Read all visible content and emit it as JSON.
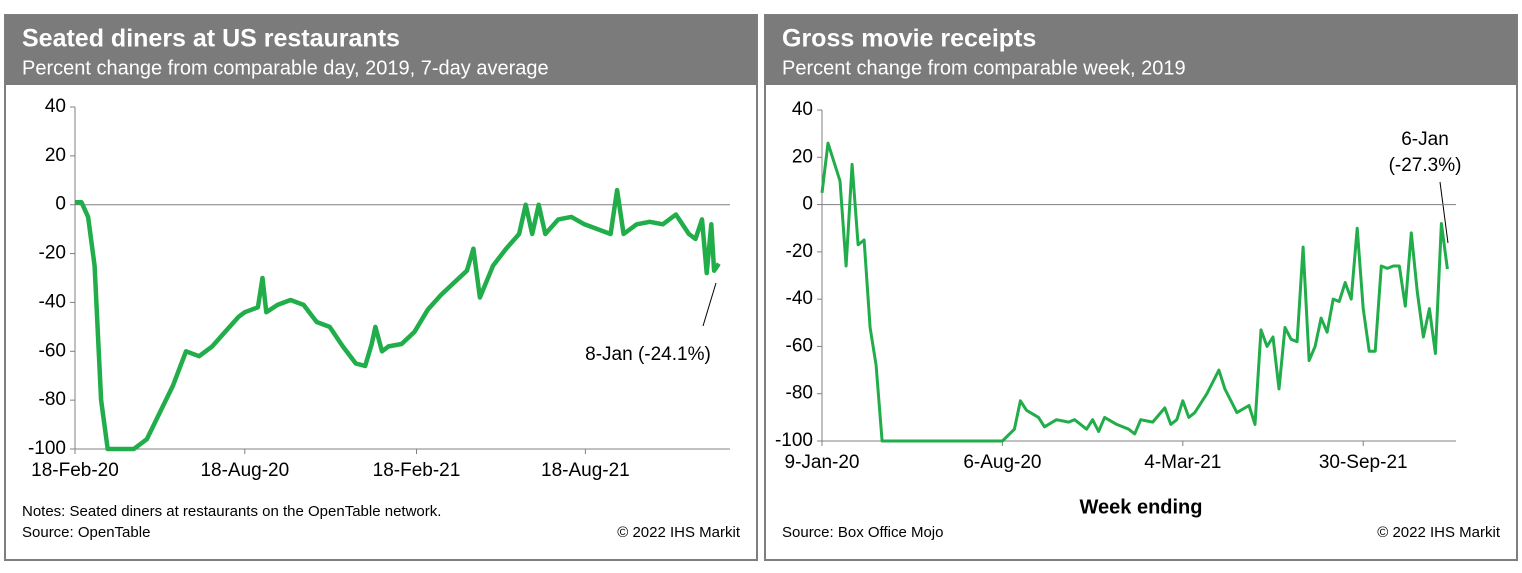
{
  "chart_data": [
    {
      "type": "line",
      "title": "Seated diners at US restaurants",
      "subtitle": "Percent change from comparable day, 2019, 7-day average",
      "color": "#21ad4a",
      "x": [
        "2020-02-18",
        "2020-02-25",
        "2020-03-03",
        "2020-03-10",
        "2020-03-17",
        "2020-03-24",
        "2020-04-07",
        "2020-04-21",
        "2020-05-05",
        "2020-05-19",
        "2020-06-02",
        "2020-06-16",
        "2020-06-30",
        "2020-07-14",
        "2020-07-28",
        "2020-08-11",
        "2020-08-18",
        "2020-09-01",
        "2020-09-06",
        "2020-09-10",
        "2020-09-22",
        "2020-10-06",
        "2020-10-20",
        "2020-11-03",
        "2020-11-17",
        "2020-12-01",
        "2020-12-15",
        "2020-12-25",
        "2021-01-01",
        "2021-01-05",
        "2021-01-12",
        "2021-01-19",
        "2021-02-02",
        "2021-02-16",
        "2021-03-02",
        "2021-03-16",
        "2021-03-30",
        "2021-04-13",
        "2021-04-20",
        "2021-04-27",
        "2021-05-11",
        "2021-05-25",
        "2021-06-08",
        "2021-06-15",
        "2021-06-22",
        "2021-06-29",
        "2021-07-06",
        "2021-07-20",
        "2021-08-03",
        "2021-08-17",
        "2021-08-31",
        "2021-09-14",
        "2021-09-21",
        "2021-09-28",
        "2021-10-12",
        "2021-10-26",
        "2021-11-09",
        "2021-11-23",
        "2021-12-07",
        "2021-12-14",
        "2021-12-21",
        "2021-12-26",
        "2021-12-31",
        "2022-01-03",
        "2022-01-08"
      ],
      "values": [
        1,
        1,
        -5,
        -25,
        -80,
        -100,
        -100,
        -100,
        -96,
        -85,
        -74,
        -60,
        -62,
        -58,
        -52,
        -46,
        -44,
        -42,
        -30,
        -44,
        -41,
        -39,
        -41,
        -48,
        -50,
        -58,
        -65,
        -66,
        -57,
        -50,
        -60,
        -58,
        -57,
        -52,
        -43,
        -37,
        -32,
        -27,
        -18,
        -38,
        -25,
        -18,
        -12,
        0,
        -12,
        0,
        -12,
        -6,
        -5,
        -8,
        -10,
        -12,
        6,
        -12,
        -8,
        -7,
        -8,
        -4,
        -12,
        -14,
        -6,
        -28,
        -8,
        -27,
        -24.1
      ],
      "xlim": [
        "2020-02-18",
        "2022-01-20"
      ],
      "xticks": [
        {
          "value": "2020-02-18",
          "label": "18-Feb-20"
        },
        {
          "value": "2020-08-18",
          "label": "18-Aug-20"
        },
        {
          "value": "2021-02-18",
          "label": "18-Feb-21"
        },
        {
          "value": "2021-08-18",
          "label": "18-Aug-21"
        }
      ],
      "ylim": [
        -100,
        40
      ],
      "yticks": [
        40,
        20,
        0,
        -20,
        -40,
        -60,
        -80,
        -100
      ],
      "annotation": [
        "8-Jan (-24.1%)"
      ],
      "notes": "Notes: Seated diners at restaurants on the OpenTable network.",
      "source": "Source: OpenTable",
      "copyright": "© 2022 IHS Markit"
    },
    {
      "type": "line",
      "title": "Gross movie receipts",
      "subtitle": "Percent change from comparable week, 2019",
      "color": "#21ad4a",
      "xlabel": "Week ending",
      "x": [
        "2020-01-09",
        "2020-01-16",
        "2020-01-30",
        "2020-02-06",
        "2020-02-13",
        "2020-02-20",
        "2020-02-27",
        "2020-03-05",
        "2020-03-12",
        "2020-03-19",
        "2020-05-07",
        "2020-06-25",
        "2020-08-06",
        "2020-08-20",
        "2020-08-27",
        "2020-09-03",
        "2020-09-17",
        "2020-09-24",
        "2020-10-08",
        "2020-10-22",
        "2020-10-29",
        "2020-11-12",
        "2020-11-19",
        "2020-11-26",
        "2020-12-03",
        "2020-12-17",
        "2020-12-31",
        "2021-01-07",
        "2021-01-14",
        "2021-01-28",
        "2021-02-11",
        "2021-02-18",
        "2021-02-25",
        "2021-03-04",
        "2021-03-11",
        "2021-03-18",
        "2021-04-01",
        "2021-04-15",
        "2021-04-22",
        "2021-05-06",
        "2021-05-20",
        "2021-05-27",
        "2021-06-03",
        "2021-06-10",
        "2021-06-17",
        "2021-06-24",
        "2021-07-01",
        "2021-07-08",
        "2021-07-15",
        "2021-07-22",
        "2021-07-29",
        "2021-08-05",
        "2021-08-12",
        "2021-08-19",
        "2021-08-26",
        "2021-09-02",
        "2021-09-09",
        "2021-09-16",
        "2021-09-23",
        "2021-09-30",
        "2021-10-07",
        "2021-10-14",
        "2021-10-21",
        "2021-10-28",
        "2021-11-04",
        "2021-11-11",
        "2021-11-18",
        "2021-11-25",
        "2021-12-02",
        "2021-12-09",
        "2021-12-16",
        "2021-12-23",
        "2021-12-30",
        "2022-01-06"
      ],
      "values": [
        5,
        26,
        10,
        -26,
        17,
        -17,
        -15,
        -52,
        -68,
        -100,
        -100,
        -100,
        -100,
        -95,
        -83,
        -87,
        -90,
        -94,
        -91,
        -92,
        -91,
        -95,
        -91,
        -96,
        -90,
        -93,
        -95,
        -97,
        -91,
        -92,
        -86,
        -93,
        -91,
        -83,
        -90,
        -88,
        -80,
        -70,
        -78,
        -88,
        -85,
        -93,
        -53,
        -60,
        -56,
        -78,
        -52,
        -57,
        -58,
        -18,
        -66,
        -60,
        -48,
        -54,
        -40,
        -41,
        -33,
        -40,
        -10,
        -44,
        -62,
        -62,
        -26,
        -27,
        -26,
        -26,
        -43,
        -12,
        -37,
        -56,
        -44,
        -63,
        -8,
        -27.3
      ],
      "xlim": [
        "2020-01-09",
        "2022-01-16"
      ],
      "xticks": [
        {
          "value": "2020-01-09",
          "label": "9-Jan-20"
        },
        {
          "value": "2020-08-06",
          "label": "6-Aug-20"
        },
        {
          "value": "2021-03-04",
          "label": "4-Mar-21"
        },
        {
          "value": "2021-09-30",
          "label": "30-Sep-21"
        }
      ],
      "ylim": [
        -100,
        40
      ],
      "yticks": [
        40,
        20,
        0,
        -20,
        -40,
        -60,
        -80,
        -100
      ],
      "annotation": [
        "6-Jan",
        "(-27.3%)"
      ],
      "source": "Source: Box Office Mojo",
      "copyright": "© 2022 IHS Markit"
    }
  ]
}
